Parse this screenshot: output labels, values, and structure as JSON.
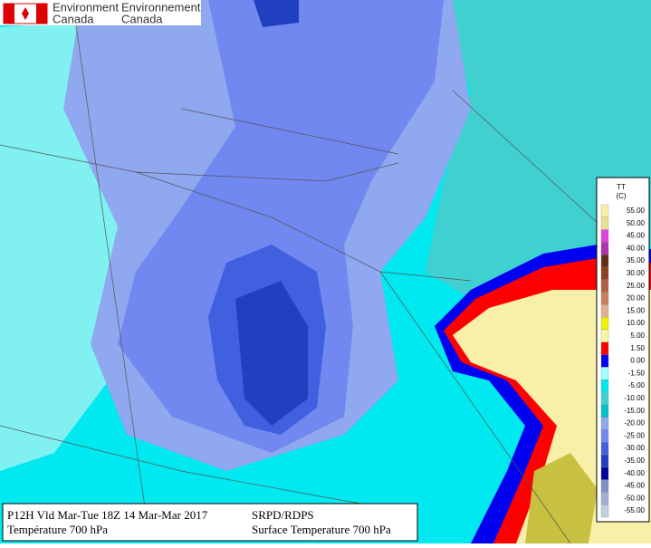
{
  "header": {
    "org_en": "Environment",
    "org_fr": "Environnement",
    "country_en": "Canada",
    "country_fr": "Canada"
  },
  "legend": {
    "title": "TT",
    "unit": "(C)",
    "entries": [
      {
        "label": "55.00",
        "color": "#f8f0a8"
      },
      {
        "label": "50.00",
        "color": "#e8e090"
      },
      {
        "label": "45.00",
        "color": "#e040e0"
      },
      {
        "label": "40.00",
        "color": "#b030b0"
      },
      {
        "label": "35.00",
        "color": "#603018"
      },
      {
        "label": "30.00",
        "color": "#904020"
      },
      {
        "label": "25.00",
        "color": "#b06040"
      },
      {
        "label": "20.00",
        "color": "#c88060"
      },
      {
        "label": "15.00",
        "color": "#e0b090"
      },
      {
        "label": "10.00",
        "color": "#f0f000"
      },
      {
        "label": "5.00",
        "color": "#f8f8a0"
      },
      {
        "label": "1.50",
        "color": "#ff0000"
      },
      {
        "label": "0.00",
        "color": "#0000f0"
      },
      {
        "label": "-1.50",
        "color": "#a0ffff"
      },
      {
        "label": "-5.00",
        "color": "#00e8f0"
      },
      {
        "label": "-10.00",
        "color": "#40d0d0"
      },
      {
        "label": "-15.00",
        "color": "#00c0c8"
      },
      {
        "label": "-20.00",
        "color": "#90a8f0"
      },
      {
        "label": "-25.00",
        "color": "#7088f0"
      },
      {
        "label": "-30.00",
        "color": "#4060e0"
      },
      {
        "label": "-35.00",
        "color": "#2040c0"
      },
      {
        "label": "-40.00",
        "color": "#0000a0"
      },
      {
        "label": "-45.00",
        "color": "#8090c0"
      },
      {
        "label": "-50.00",
        "color": "#a0b0d0"
      },
      {
        "label": "-55.00",
        "color": "#c0d0e0"
      }
    ]
  },
  "info": {
    "line1_left": "P12H Vld Mar-Tue 18Z 14 Mar-Mar 2017",
    "line2_left": "Température 700 hPa",
    "line1_right": "SRPD/RDPS",
    "line2_right": "Surface Temperature 700 hPa"
  }
}
